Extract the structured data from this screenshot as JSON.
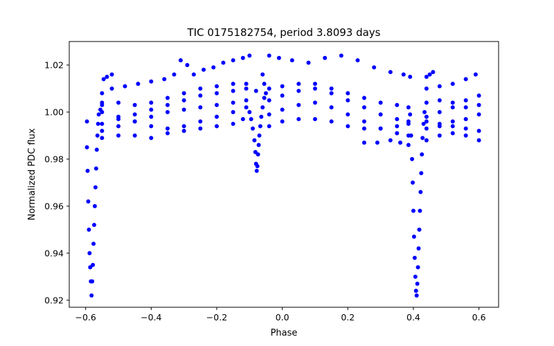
{
  "chart_data": {
    "type": "scatter",
    "title": "TIC 0175182754, period 3.8093 days",
    "xlabel": "Phase",
    "ylabel": "Normalized PDC flux",
    "xlim": [
      -0.65,
      0.66
    ],
    "ylim": [
      0.917,
      1.03
    ],
    "xticks": [
      -0.6,
      -0.4,
      -0.2,
      0.0,
      0.2,
      0.4,
      0.6
    ],
    "xtick_labels": [
      "−0.6",
      "−0.4",
      "−0.2",
      "0.0",
      "0.2",
      "0.4",
      "0.6"
    ],
    "yticks": [
      0.92,
      0.94,
      0.96,
      0.98,
      1.0,
      1.02
    ],
    "ytick_labels": [
      "0.92",
      "0.94",
      "0.96",
      "0.98",
      "1.00",
      "1.02"
    ],
    "grid": false,
    "marker_color": "#0000ff",
    "series": [
      {
        "values": [
          [
            -0.596,
            0.996
          ],
          [
            -0.596,
            0.985
          ],
          [
            -0.594,
            0.975
          ],
          [
            -0.592,
            0.962
          ],
          [
            -0.59,
            0.95
          ],
          [
            -0.588,
            0.94
          ],
          [
            -0.586,
            0.934
          ],
          [
            -0.584,
            0.928
          ],
          [
            -0.582,
            0.922
          ],
          [
            -0.58,
            0.928
          ],
          [
            -0.578,
            0.935
          ],
          [
            -0.576,
            0.944
          ],
          [
            -0.574,
            0.952
          ],
          [
            -0.572,
            0.96
          ],
          [
            -0.57,
            0.968
          ],
          [
            -0.568,
            0.976
          ],
          [
            -0.566,
            0.984
          ],
          [
            -0.564,
            0.99
          ],
          [
            -0.562,
            0.995
          ],
          [
            -0.56,
            0.999
          ],
          [
            -0.555,
            1.001
          ],
          [
            -0.55,
            1.003
          ],
          [
            -0.545,
            1.014
          ],
          [
            -0.535,
            1.015
          ],
          [
            -0.52,
            1.016
          ],
          [
            -0.55,
            1.008
          ],
          [
            -0.52,
            1.01
          ],
          [
            -0.48,
            1.011
          ],
          [
            -0.44,
            1.012
          ],
          [
            -0.4,
            1.013
          ],
          [
            -0.36,
            1.014
          ],
          [
            -0.33,
            1.016
          ],
          [
            -0.31,
            1.022
          ],
          [
            -0.29,
            1.02
          ],
          [
            -0.27,
            1.016
          ],
          [
            -0.24,
            1.018
          ],
          [
            -0.21,
            1.019
          ],
          [
            -0.18,
            1.021
          ],
          [
            -0.15,
            1.022
          ],
          [
            -0.12,
            1.023
          ],
          [
            -0.1,
            1.024
          ],
          [
            -0.55,
            0.989
          ],
          [
            -0.5,
            0.99
          ],
          [
            -0.45,
            0.99
          ],
          [
            -0.4,
            0.989
          ],
          [
            -0.35,
            0.991
          ],
          [
            -0.3,
            0.992
          ],
          [
            -0.25,
            0.993
          ],
          [
            -0.2,
            0.994
          ],
          [
            -0.15,
            0.995
          ],
          [
            -0.12,
            0.997
          ],
          [
            -0.55,
            0.995
          ],
          [
            -0.5,
            0.997
          ],
          [
            -0.45,
            0.999
          ],
          [
            -0.4,
            1.001
          ],
          [
            -0.35,
            1.003
          ],
          [
            -0.3,
            1.005
          ],
          [
            -0.25,
            1.007
          ],
          [
            -0.2,
            1.008
          ],
          [
            -0.15,
            1.009
          ],
          [
            -0.11,
            1.01
          ],
          [
            -0.55,
            1.004
          ],
          [
            -0.5,
            1.004
          ],
          [
            -0.45,
            1.003
          ],
          [
            -0.4,
            1.004
          ],
          [
            -0.35,
            1.006
          ],
          [
            -0.3,
            1.008
          ],
          [
            -0.25,
            1.01
          ],
          [
            -0.2,
            1.011
          ],
          [
            -0.15,
            1.012
          ],
          [
            -0.11,
            1.012
          ],
          [
            -0.55,
            1.0
          ],
          [
            -0.5,
            0.998
          ],
          [
            -0.45,
            0.996
          ],
          [
            -0.4,
            0.994
          ],
          [
            -0.35,
            0.993
          ],
          [
            -0.3,
            0.994
          ],
          [
            -0.25,
            0.996
          ],
          [
            -0.2,
            0.998
          ],
          [
            -0.15,
            1.0
          ],
          [
            -0.11,
            1.002
          ],
          [
            -0.55,
            0.992
          ],
          [
            -0.5,
            0.994
          ],
          [
            -0.45,
            0.996
          ],
          [
            -0.4,
            0.998
          ],
          [
            -0.35,
            1.0
          ],
          [
            -0.3,
            1.001
          ],
          [
            -0.25,
            1.002
          ],
          [
            -0.2,
            1.003
          ],
          [
            -0.15,
            1.004
          ],
          [
            -0.11,
            1.005
          ],
          [
            -0.1,
            1.0
          ],
          [
            -0.095,
            0.997
          ],
          [
            -0.09,
            0.993
          ],
          [
            -0.085,
            0.988
          ],
          [
            -0.082,
            0.983
          ],
          [
            -0.08,
            0.978
          ],
          [
            -0.078,
            0.975
          ],
          [
            -0.076,
            0.977
          ],
          [
            -0.074,
            0.982
          ],
          [
            -0.072,
            0.986
          ],
          [
            -0.07,
            0.99
          ],
          [
            -0.067,
            0.994
          ],
          [
            -0.064,
            0.998
          ],
          [
            -0.06,
            1.002
          ],
          [
            -0.055,
            1.006
          ],
          [
            -0.055,
            1.012
          ],
          [
            -0.05,
            1.008
          ],
          [
            -0.08,
            1.009
          ],
          [
            -0.06,
            1.016
          ],
          [
            -0.04,
            1.024
          ],
          [
            -0.01,
            1.023
          ],
          [
            0.03,
            1.022
          ],
          [
            0.08,
            1.021
          ],
          [
            0.13,
            1.023
          ],
          [
            0.18,
            1.024
          ],
          [
            0.23,
            1.022
          ],
          [
            0.28,
            1.019
          ],
          [
            0.33,
            1.017
          ],
          [
            0.37,
            1.016
          ],
          [
            0.39,
            1.015
          ],
          [
            -0.04,
            1.01
          ],
          [
            0.0,
            1.011
          ],
          [
            0.05,
            1.012
          ],
          [
            0.1,
            1.012
          ],
          [
            0.15,
            1.01
          ],
          [
            0.2,
            1.008
          ],
          [
            0.25,
            1.006
          ],
          [
            0.3,
            1.004
          ],
          [
            0.35,
            1.003
          ],
          [
            0.385,
            1.002
          ],
          [
            -0.04,
            1.005
          ],
          [
            0.0,
            1.007
          ],
          [
            0.05,
            1.009
          ],
          [
            0.1,
            1.01
          ],
          [
            0.15,
            1.008
          ],
          [
            0.2,
            1.005
          ],
          [
            0.25,
            1.002
          ],
          [
            0.3,
            0.999
          ],
          [
            0.35,
            0.997
          ],
          [
            0.385,
            0.996
          ],
          [
            -0.04,
            0.999
          ],
          [
            0.0,
            1.001
          ],
          [
            0.05,
            1.003
          ],
          [
            0.1,
            1.004
          ],
          [
            0.15,
            1.002
          ],
          [
            0.2,
            0.999
          ],
          [
            0.25,
            0.996
          ],
          [
            0.3,
            0.993
          ],
          [
            0.35,
            0.991
          ],
          [
            0.385,
            0.99
          ],
          [
            -0.04,
            0.994
          ],
          [
            0.0,
            0.996
          ],
          [
            0.05,
            0.997
          ],
          [
            0.1,
            0.997
          ],
          [
            0.15,
            0.996
          ],
          [
            0.2,
            0.994
          ],
          [
            0.25,
            0.993
          ],
          [
            0.3,
            0.993
          ],
          [
            0.35,
            0.994
          ],
          [
            0.385,
            0.995
          ],
          [
            0.25,
            0.987
          ],
          [
            0.29,
            0.987
          ],
          [
            0.33,
            0.988
          ],
          [
            0.36,
            0.987
          ],
          [
            0.385,
            0.986
          ],
          [
            0.39,
            0.999
          ],
          [
            0.393,
            0.99
          ],
          [
            0.396,
            0.98
          ],
          [
            0.398,
            0.97
          ],
          [
            0.4,
            0.958
          ],
          [
            0.402,
            0.947
          ],
          [
            0.404,
            0.938
          ],
          [
            0.406,
            0.93
          ],
          [
            0.408,
            0.924
          ],
          [
            0.41,
            0.922
          ],
          [
            0.412,
            0.927
          ],
          [
            0.414,
            0.934
          ],
          [
            0.416,
            0.942
          ],
          [
            0.418,
            0.95
          ],
          [
            0.42,
            0.958
          ],
          [
            0.422,
            0.966
          ],
          [
            0.424,
            0.974
          ],
          [
            0.426,
            0.982
          ],
          [
            0.428,
            0.989
          ],
          [
            0.431,
            0.995
          ],
          [
            0.434,
            1.0
          ],
          [
            0.44,
            1.015
          ],
          [
            0.45,
            1.016
          ],
          [
            0.46,
            1.017
          ],
          [
            0.44,
            1.01
          ],
          [
            0.48,
            1.011
          ],
          [
            0.52,
            1.012
          ],
          [
            0.56,
            1.014
          ],
          [
            0.59,
            1.016
          ],
          [
            0.44,
            1.004
          ],
          [
            0.48,
            1.005
          ],
          [
            0.52,
            1.004
          ],
          [
            0.56,
            1.005
          ],
          [
            0.6,
            1.007
          ],
          [
            0.44,
            0.998
          ],
          [
            0.48,
            1.0
          ],
          [
            0.52,
            1.002
          ],
          [
            0.56,
            1.002
          ],
          [
            0.6,
            1.003
          ],
          [
            0.44,
            0.993
          ],
          [
            0.48,
            0.994
          ],
          [
            0.52,
            0.996
          ],
          [
            0.56,
            0.997
          ],
          [
            0.6,
            0.999
          ],
          [
            0.44,
            0.988
          ],
          [
            0.48,
            0.99
          ],
          [
            0.52,
            0.991
          ],
          [
            0.56,
            0.99
          ],
          [
            0.6,
            0.988
          ],
          [
            0.44,
            0.996
          ],
          [
            0.48,
            0.995
          ],
          [
            0.52,
            0.994
          ],
          [
            0.56,
            0.993
          ],
          [
            0.6,
            0.992
          ]
        ]
      }
    ]
  }
}
